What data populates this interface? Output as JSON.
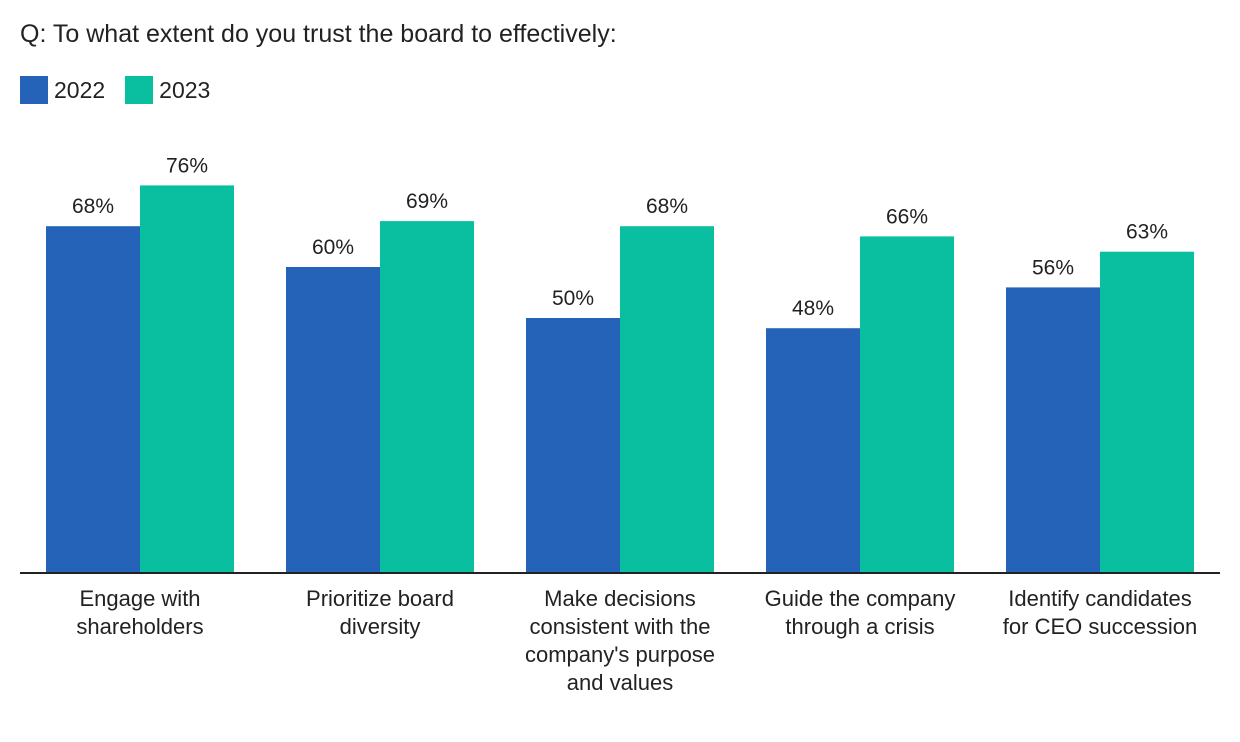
{
  "chart_data": {
    "type": "bar",
    "title": "Q: To what extent do you trust the board to effectively:",
    "categories": [
      [
        "Engage with",
        "shareholders"
      ],
      [
        "Prioritize board",
        "diversity"
      ],
      [
        "Make decisions",
        "consistent with the",
        "company's purpose",
        "and values"
      ],
      [
        "Guide the company",
        "through a crisis"
      ],
      [
        "Identify candidates",
        "for CEO succession"
      ]
    ],
    "series": [
      {
        "name": "2022",
        "color": "#2463b8",
        "values": [
          68,
          60,
          50,
          48,
          56
        ]
      },
      {
        "name": "2023",
        "color": "#0abf9f",
        "values": [
          76,
          69,
          68,
          66,
          63
        ]
      }
    ],
    "value_suffix": "%",
    "ylim": [
      0,
      100
    ],
    "legend_position": "top-left",
    "grid": false
  }
}
